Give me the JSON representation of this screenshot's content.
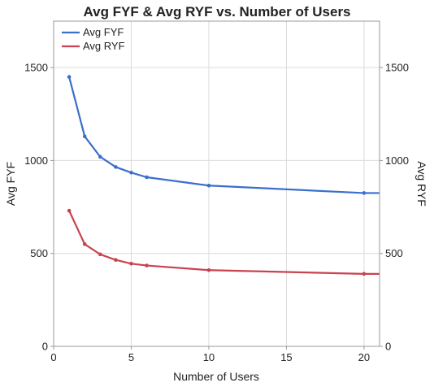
{
  "chart_data": {
    "type": "line",
    "title": "Avg FYF & Avg RYF vs. Number of Users",
    "xlabel": "Number of Users",
    "ylabel_left": "Avg FYF",
    "ylabel_right": "Avg RYF",
    "xlim": [
      0,
      21
    ],
    "ylim": [
      0,
      1750
    ],
    "xticks": [
      0,
      5,
      10,
      15,
      20
    ],
    "yticks": [
      0,
      500,
      1000,
      1500
    ],
    "grid": true,
    "legend": "top-left",
    "series": [
      {
        "name": "Avg FYF",
        "color": "#3a6fcc",
        "x": [
          1,
          2,
          3,
          4,
          5,
          6,
          10,
          20,
          21
        ],
        "y": [
          1450,
          1130,
          1020,
          965,
          935,
          910,
          865,
          825,
          825
        ]
      },
      {
        "name": "Avg RYF",
        "color": "#c9424f",
        "x": [
          1,
          2,
          3,
          4,
          5,
          6,
          10,
          20,
          21
        ],
        "y": [
          730,
          550,
          495,
          465,
          445,
          435,
          410,
          390,
          390
        ]
      }
    ]
  }
}
